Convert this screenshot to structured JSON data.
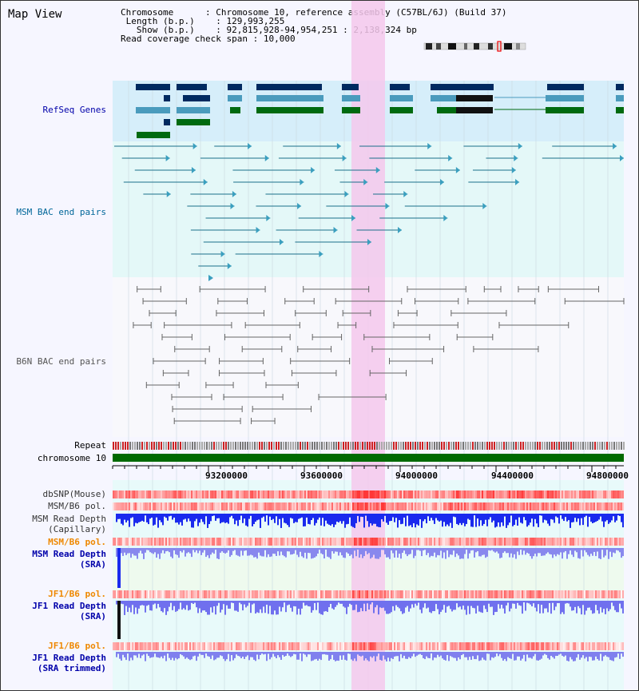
{
  "view": {
    "title": "Map View",
    "info": {
      "chromosome_label": "Chromosome",
      "chromosome_value": "Chromosome 10, reference assembly (C57BL/6J) (Build 37)",
      "length_label": "Length (b.p.)",
      "length_value": "129,993,255",
      "show_label": "Show (b.p.)",
      "show_value": "92,815,928-94,954,251 : 2,138,324 bp",
      "span_label": "Read coverage check span",
      "span_value": "10,000"
    }
  },
  "tracks": {
    "refseq": "RefSeq Genes",
    "msm_bac": "MSM BAC end pairs",
    "b6n_bac": "B6N BAC end pairs",
    "repeat": "Repeat",
    "chromosome": "chromosome 10",
    "dbsnp": "dbSNP(Mouse)",
    "msm_b6_pol_1": "MSM/B6 pol.",
    "msm_depth_cap_1": "MSM Read Depth",
    "msm_depth_cap_2": "(Capillary)",
    "msm_b6_pol_2": "MSM/B6 pol.",
    "msm_depth_sra_1": "MSM Read Depth",
    "msm_depth_sra_2": "(SRA)",
    "jf1_b6_pol_1": "JF1/B6 pol.",
    "jf1_depth_sra_1": "JF1 Read Depth",
    "jf1_depth_sra_2": "(SRA)",
    "jf1_b6_pol_2": "JF1/B6 pol.",
    "jf1_depth_trim_1": "JF1 Read Depth",
    "jf1_depth_trim_2": "(SRA trimmed)"
  },
  "axis": {
    "ticks": [
      "93200000",
      "93600000",
      "94000000",
      "94400000",
      "94800000"
    ]
  },
  "colors": {
    "navy_label": "#0000aa",
    "teal_label": "#006699",
    "gray_label": "#555555",
    "orange_label": "#ee8800",
    "highlight": "#f5c8ec",
    "gene_dark": "#002a60",
    "gene_mid": "#4a9bbd",
    "gene_green": "#006a10",
    "chrom_green": "#006a00"
  }
}
